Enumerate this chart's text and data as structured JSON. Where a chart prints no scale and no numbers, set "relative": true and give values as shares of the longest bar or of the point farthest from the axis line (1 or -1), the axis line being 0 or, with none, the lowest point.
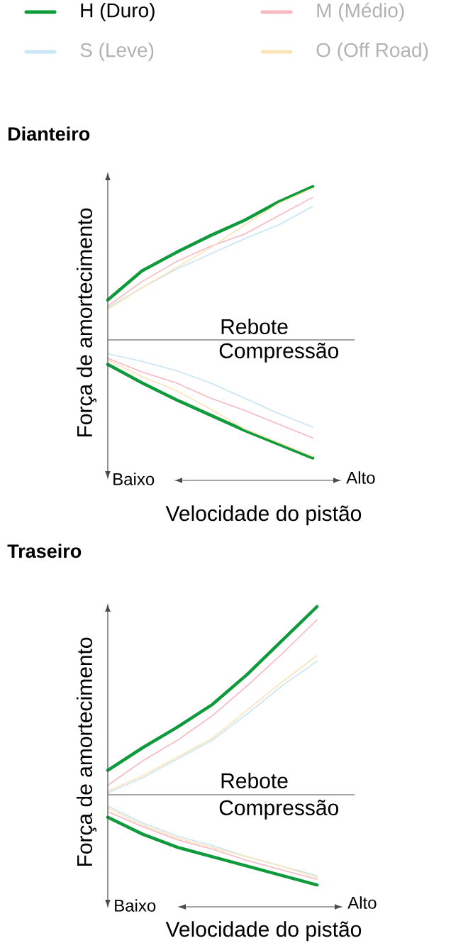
{
  "chart_data": [
    {
      "type": "line",
      "title": "Dianteiro",
      "xlabel": "Velocidade do pistão",
      "ylabel": "Força de amortecimento",
      "relative": true,
      "legend": "top",
      "annotations": [
        "Rebote",
        "Compressão",
        "Baixo",
        "Alto"
      ],
      "categories": [
        null,
        null,
        null,
        null,
        null,
        null,
        null
      ],
      "series": [
        {
          "name": "H (Duro)",
          "color": "#0f9a3c",
          "values": [
            0.26,
            0.45,
            0.57,
            0.68,
            0.78,
            0.9,
            1.0
          ]
        },
        {
          "color": "#0f9a3c",
          "values": [
            -0.16,
            -0.28,
            -0.39,
            -0.49,
            -0.59,
            -0.68,
            -0.77
          ]
        },
        {
          "name": "M (Médio)",
          "color": "#f7b8c0",
          "values": [
            0.22,
            0.38,
            0.51,
            0.61,
            0.69,
            0.81,
            0.93
          ]
        },
        {
          "color": "#f7b8c0",
          "values": [
            -0.12,
            -0.21,
            -0.28,
            -0.38,
            -0.46,
            -0.55,
            -0.64
          ]
        },
        {
          "name": "S (Leve)",
          "color": "#c8e4f5",
          "values": [
            0.21,
            0.34,
            0.46,
            0.56,
            0.66,
            0.75,
            0.87
          ]
        },
        {
          "color": "#c8e4f5",
          "values": [
            -0.09,
            -0.14,
            -0.2,
            -0.28,
            -0.38,
            -0.48,
            -0.57
          ]
        },
        {
          "name": "O (Off Road)",
          "color": "#fbe3b8",
          "values": [
            0.2,
            0.34,
            0.47,
            0.6,
            0.75,
            0.89,
            0.99
          ]
        },
        {
          "color": "#fbe3b8",
          "values": [
            -0.13,
            -0.24,
            -0.33,
            -0.45,
            -0.58,
            -0.67,
            -0.76
          ]
        }
      ]
    },
    {
      "type": "line",
      "title": "Traseiro",
      "xlabel": "Velocidade do pistão",
      "ylabel": "Força de amortecimento",
      "relative": true,
      "annotations": [
        "Rebote",
        "Compressão",
        "Baixo",
        "Alto"
      ],
      "categories": [
        null,
        null,
        null,
        null,
        null,
        null,
        null
      ],
      "series": [
        {
          "color": "#0f9a3c",
          "values": [
            0.13,
            0.25,
            0.36,
            0.48,
            0.64,
            0.82,
            1.0
          ]
        },
        {
          "color": "#0f9a3c",
          "values": [
            -0.12,
            -0.21,
            -0.28,
            -0.33,
            -0.38,
            -0.43,
            -0.48
          ]
        },
        {
          "color": "#f7b8c0",
          "values": [
            0.05,
            0.18,
            0.29,
            0.42,
            0.58,
            0.75,
            0.93
          ]
        },
        {
          "color": "#f7b8c0",
          "values": [
            -0.09,
            -0.17,
            -0.24,
            -0.29,
            -0.35,
            -0.4,
            -0.45
          ]
        },
        {
          "color": "#c8e4f5",
          "values": [
            0.01,
            0.09,
            0.19,
            0.29,
            0.43,
            0.58,
            0.71
          ]
        },
        {
          "color": "#c8e4f5",
          "values": [
            -0.06,
            -0.15,
            -0.22,
            -0.27,
            -0.33,
            -0.38,
            -0.43
          ]
        },
        {
          "color": "#fbe3b8",
          "values": [
            0.02,
            0.1,
            0.2,
            0.3,
            0.45,
            0.6,
            0.74
          ]
        },
        {
          "color": "#fbe3b8",
          "values": [
            -0.07,
            -0.16,
            -0.23,
            -0.28,
            -0.33,
            -0.38,
            -0.44
          ]
        }
      ]
    }
  ]
}
